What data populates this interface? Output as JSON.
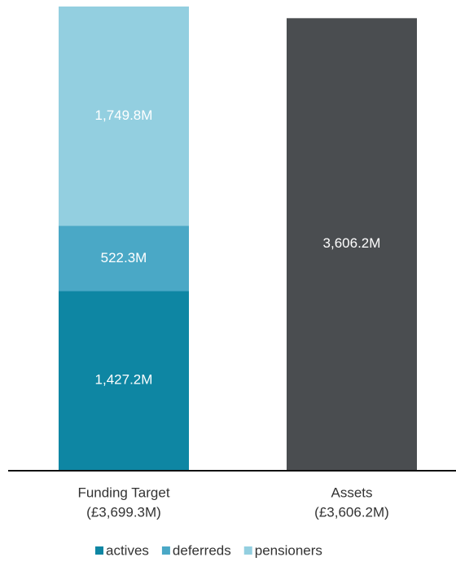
{
  "chart_data": {
    "type": "stacked-bar",
    "categories": [
      [
        "Funding Target",
        "(£3,699.3M)"
      ],
      [
        "Assets",
        "(£3,606.2M)"
      ]
    ],
    "series": [
      {
        "name": "actives",
        "color": "#0e86a3",
        "values": [
          1427.2,
          null
        ],
        "value_labels": [
          "1,427.2M",
          null
        ]
      },
      {
        "name": "deferreds",
        "color": "#4aa8c6",
        "values": [
          522.3,
          null
        ],
        "value_labels": [
          "522.3M",
          null
        ]
      },
      {
        "name": "pensioners",
        "color": "#93cfe0",
        "values": [
          1749.8,
          null
        ],
        "value_labels": [
          "1,749.8M",
          null
        ]
      },
      {
        "color": "#4a4d50",
        "values": [
          null,
          3606.2
        ],
        "value_labels": [
          null,
          "3,606.2M"
        ]
      }
    ]
  }
}
